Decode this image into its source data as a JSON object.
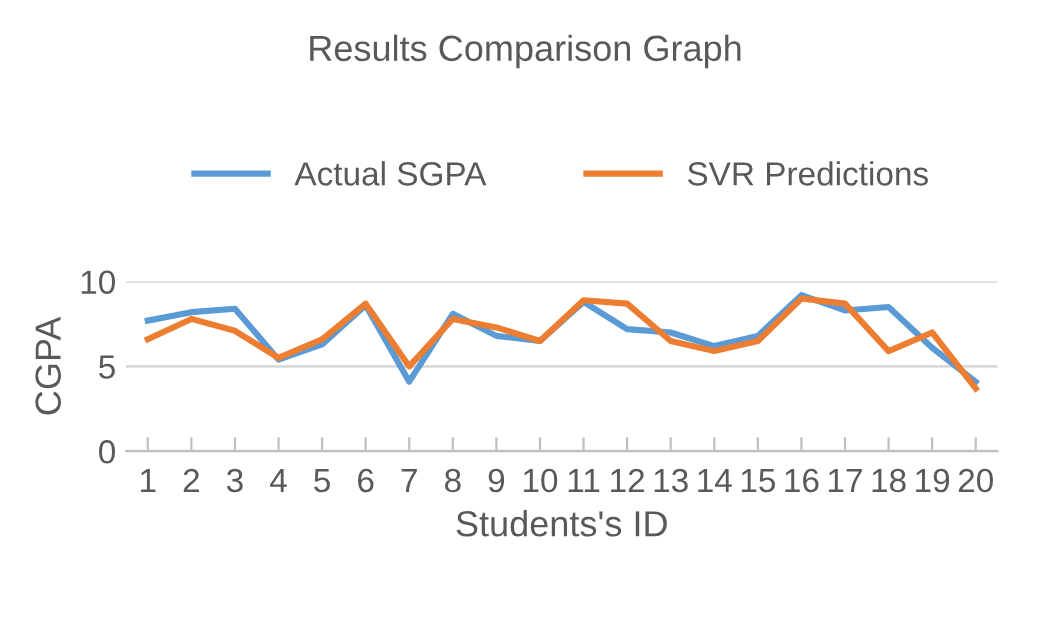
{
  "chart_data": {
    "type": "line",
    "title": "Results Comparison Graph",
    "xlabel": "Students's ID",
    "ylabel": "CGPA",
    "categories": [
      "1",
      "2",
      "3",
      "4",
      "5",
      "6",
      "7",
      "8",
      "9",
      "10",
      "11",
      "12",
      "13",
      "14",
      "15",
      "16",
      "17",
      "18",
      "19",
      "20"
    ],
    "series": [
      {
        "name": "Actual SGPA",
        "color": "#5b9bd5",
        "values": [
          7.7,
          8.2,
          8.4,
          5.4,
          6.3,
          8.6,
          4.1,
          8.1,
          6.8,
          6.5,
          8.8,
          7.2,
          7.0,
          6.2,
          6.8,
          9.2,
          8.3,
          8.5,
          6.1,
          4.1
        ]
      },
      {
        "name": "SVR Predictions",
        "color": "#ed7d31",
        "values": [
          6.6,
          7.8,
          7.1,
          5.5,
          6.6,
          8.7,
          5.0,
          7.8,
          7.3,
          6.5,
          8.9,
          8.7,
          6.5,
          5.9,
          6.5,
          9.0,
          8.7,
          5.9,
          7.0,
          3.7
        ]
      }
    ],
    "ylim": [
      0,
      10
    ],
    "yticks": [
      0,
      5,
      10
    ],
    "grid": "y",
    "legend": "top",
    "marker": "none",
    "line_style": "solid"
  }
}
